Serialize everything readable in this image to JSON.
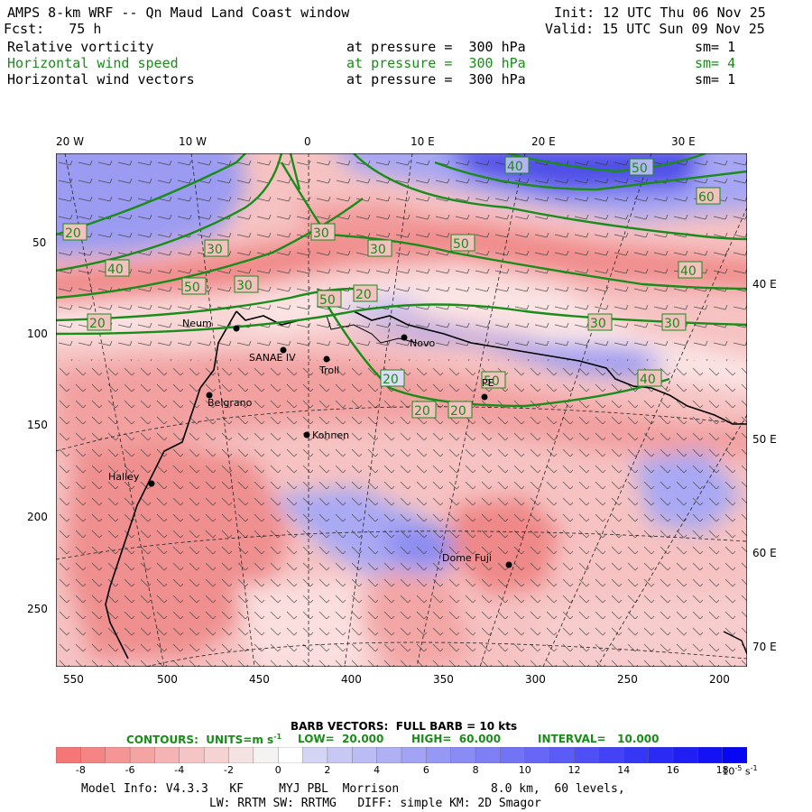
{
  "header": {
    "title": "AMPS 8-km WRF -- Qn Maud Land Coast window",
    "init": "Init: 12 UTC Thu 06 Nov 25",
    "fcst": "Fcst:   75 h",
    "valid": "Valid: 15 UTC Sun 09 Nov 25",
    "fields": [
      {
        "name": "Relative vorticity",
        "level": "at pressure =  300 hPa",
        "sm": "sm= 1",
        "color": "#000000"
      },
      {
        "name": "Horizontal wind speed",
        "level": "at pressure =  300 hPa",
        "sm": "sm= 4",
        "color": "#1a8c1a"
      },
      {
        "name": "Horizontal wind vectors",
        "level": "at pressure =  300 hPa",
        "sm": "sm= 1",
        "color": "#000000"
      }
    ]
  },
  "map": {
    "lon_labels_top": [
      "20 W",
      "10 W",
      "0",
      "10 E",
      "20 E",
      "30 E"
    ],
    "lon_labels_right": [
      "40 E",
      "50 E",
      "60 E",
      "70 E"
    ],
    "y_ticks": [
      "50",
      "100",
      "150",
      "200",
      "250"
    ],
    "x_ticks": [
      "550",
      "500",
      "450",
      "400",
      "350",
      "300",
      "250",
      "200"
    ],
    "stations": [
      {
        "name": "Neum"
      },
      {
        "name": "SANAE IV"
      },
      {
        "name": "Troll"
      },
      {
        "name": "Novo"
      },
      {
        "name": "PE"
      },
      {
        "name": "Kohnen"
      },
      {
        "name": "Halley"
      },
      {
        "name": "Dome Fuji"
      },
      {
        "name": "Belgrano"
      }
    ],
    "contour_labels": [
      "20",
      "30",
      "40",
      "50",
      "60",
      "30",
      "40",
      "50",
      "30",
      "20",
      "30",
      "40",
      "50",
      "30",
      "20",
      "20",
      "30",
      "40",
      "50",
      "20"
    ],
    "colors": {
      "positive": "#f4a4a4",
      "negative": "#8c8cf0",
      "contour": "#1a8c1a",
      "coast": "#000000"
    }
  },
  "legend": {
    "barb": "BARB VECTORS:  FULL BARB = 10 kts",
    "contours_label": "CONTOURS:  UNITS=m s",
    "contours_sup": "-1",
    "low": "LOW=  20.000",
    "high": "HIGH=  60.000",
    "interval": "INTERVAL=   10.000",
    "colorbar_values": [
      "-8",
      "-6",
      "-4",
      "-2",
      "0",
      "2",
      "4",
      "6",
      "8",
      "10",
      "12",
      "14",
      "16",
      "18"
    ],
    "colorbar_unit": "10",
    "colorbar_unit_sup": "-5",
    "colorbar_unit_suffix": "s",
    "colorbar_unit_suffix_sup": "-1"
  },
  "footer": {
    "line1": "Model Info: V4.3.3   KF     MYJ PBL  Morrison             8.0 km,  60 levels,",
    "line2": "LW: RRTM SW: RRTMG   DIFF: simple KM: 2D Smagor"
  }
}
